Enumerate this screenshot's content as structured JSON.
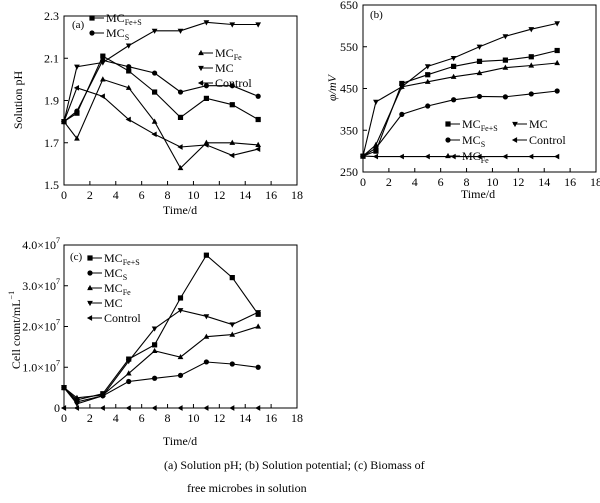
{
  "caption": {
    "line1": "(a)  Solution pH; (b) Solution potential; (c) Biomass of",
    "line2": "free microbes in solution"
  },
  "chart_data": [
    {
      "type": "line",
      "panel_label": "(a)",
      "xlabel": "Time/d",
      "ylabel": "Solution pH",
      "xlim": [
        0,
        18
      ],
      "ylim": [
        1.5,
        2.3
      ],
      "x_ticks": [
        "0",
        "2",
        "4",
        "6",
        "8",
        "10",
        "12",
        "14",
        "16",
        "18"
      ],
      "y_ticks": [
        "1.5",
        "1.7",
        "1.9",
        "2.1",
        "2.3"
      ],
      "grid": false,
      "legend": "top-right",
      "series": [
        {
          "name": "MC",
          "sub": "Fe+S",
          "marker": "square",
          "x": [
            0,
            1,
            3,
            5,
            7,
            9,
            11,
            13,
            15
          ],
          "y": [
            1.8,
            1.84,
            2.11,
            2.04,
            1.94,
            1.82,
            1.91,
            1.88,
            1.81
          ]
        },
        {
          "name": "MC",
          "sub": "S",
          "marker": "circle",
          "x": [
            0,
            1,
            3,
            5,
            7,
            9,
            11,
            13,
            15
          ],
          "y": [
            1.8,
            1.85,
            2.09,
            2.06,
            2.03,
            1.94,
            1.97,
            1.97,
            1.92
          ]
        },
        {
          "name": "MC",
          "sub": "Fe",
          "marker": "triangle-up",
          "x": [
            0,
            1,
            3,
            5,
            7,
            9,
            11,
            13,
            15
          ],
          "y": [
            1.8,
            1.72,
            2.0,
            1.96,
            1.8,
            1.58,
            1.7,
            1.7,
            1.69
          ]
        },
        {
          "name": "MC",
          "sub": "",
          "marker": "triangle-down",
          "x": [
            0,
            1,
            3,
            5,
            7,
            9,
            11,
            13,
            15
          ],
          "y": [
            1.8,
            2.06,
            2.08,
            2.16,
            2.23,
            2.23,
            2.27,
            2.26,
            2.26
          ]
        },
        {
          "name": "Control",
          "sub": "",
          "marker": "triangle-left",
          "x": [
            0,
            1,
            3,
            5,
            7,
            9,
            11,
            13,
            15
          ],
          "y": [
            1.8,
            1.96,
            1.92,
            1.81,
            1.74,
            1.68,
            1.69,
            1.64,
            1.67
          ]
        }
      ]
    },
    {
      "type": "line",
      "panel_label": "(b)",
      "xlabel": "Time/d",
      "ylabel": "φ/mV",
      "xlim": [
        0,
        18
      ],
      "ylim": [
        250,
        650
      ],
      "x_ticks": [
        "0",
        "2",
        "4",
        "6",
        "8",
        "10",
        "12",
        "14",
        "16",
        "18"
      ],
      "y_ticks": [
        "250",
        "350",
        "450",
        "550",
        "650"
      ],
      "grid": false,
      "legend": "bottom-right",
      "series": [
        {
          "name": "MC",
          "sub": "Fe+S",
          "marker": "square",
          "x": [
            0,
            1,
            3,
            5,
            7,
            9,
            11,
            13,
            15
          ],
          "y": [
            288,
            300,
            462,
            483,
            503,
            515,
            518,
            526,
            541
          ]
        },
        {
          "name": "MC",
          "sub": "S",
          "marker": "circle",
          "x": [
            0,
            1,
            3,
            5,
            7,
            9,
            11,
            13,
            15
          ],
          "y": [
            288,
            307,
            388,
            408,
            423,
            431,
            430,
            437,
            444
          ]
        },
        {
          "name": "MC",
          "sub": "Fe",
          "marker": "triangle-up",
          "x": [
            0,
            1,
            3,
            5,
            7,
            9,
            11,
            13,
            15
          ],
          "y": [
            288,
            315,
            454,
            466,
            478,
            487,
            500,
            505,
            511
          ]
        },
        {
          "name": "MC",
          "sub": "",
          "marker": "triangle-down",
          "x": [
            0,
            1,
            3,
            5,
            7,
            9,
            11,
            13,
            15
          ],
          "y": [
            288,
            418,
            454,
            503,
            523,
            550,
            575,
            592,
            606
          ]
        },
        {
          "name": "Control",
          "sub": "",
          "marker": "triangle-left",
          "x": [
            0,
            1,
            3,
            5,
            7,
            9,
            11,
            13,
            15
          ],
          "y": [
            288,
            287,
            287,
            287,
            287,
            287,
            287,
            287,
            287
          ]
        }
      ]
    },
    {
      "type": "line",
      "panel_label": "(c)",
      "xlabel": "Time/d",
      "ylabel": "Cell count/mL",
      "ylabel_sup": "−1",
      "xlim": [
        0,
        18
      ],
      "ylim": [
        0,
        40000000
      ],
      "x_ticks": [
        "0",
        "2",
        "4",
        "6",
        "8",
        "10",
        "12",
        "14",
        "16",
        "18"
      ],
      "y_ticks": [
        {
          "mant": "0",
          "exp": ""
        },
        {
          "mant": "1.0×10",
          "exp": "7"
        },
        {
          "mant": "2.0×10",
          "exp": "7"
        },
        {
          "mant": "3.0×10",
          "exp": "7"
        },
        {
          "mant": "4.0×10",
          "exp": "7"
        }
      ],
      "grid": false,
      "legend": "top-left",
      "series": [
        {
          "name": "MC",
          "sub": "Fe+S",
          "marker": "square",
          "x": [
            0,
            1,
            3,
            5,
            7,
            9,
            11,
            13,
            15
          ],
          "y": [
            5000000,
            2000000,
            3500000,
            12000000,
            15500000,
            27000000,
            37500000,
            32000000,
            23000000
          ]
        },
        {
          "name": "MC",
          "sub": "S",
          "marker": "circle",
          "x": [
            0,
            1,
            3,
            5,
            7,
            9,
            11,
            13,
            15
          ],
          "y": [
            5000000,
            1500000,
            3000000,
            6500000,
            7300000,
            8000000,
            11300000,
            10800000,
            10000000
          ]
        },
        {
          "name": "MC",
          "sub": "Fe",
          "marker": "triangle-up",
          "x": [
            0,
            1,
            3,
            5,
            7,
            9,
            11,
            13,
            15
          ],
          "y": [
            5000000,
            2500000,
            3200000,
            8500000,
            14000000,
            12500000,
            17500000,
            18000000,
            20000000
          ]
        },
        {
          "name": "MC",
          "sub": "",
          "marker": "triangle-down",
          "x": [
            0,
            1,
            3,
            5,
            7,
            9,
            11,
            13,
            15
          ],
          "y": [
            5000000,
            1000000,
            3000000,
            11500000,
            19500000,
            24000000,
            22500000,
            20500000,
            23500000
          ]
        },
        {
          "name": "Control",
          "sub": "",
          "marker": "triangle-left",
          "x": [
            0,
            1,
            3,
            5,
            7,
            9,
            11,
            13,
            15
          ],
          "y": [
            0,
            0,
            0,
            0,
            0,
            0,
            0,
            0,
            0
          ]
        }
      ]
    }
  ]
}
